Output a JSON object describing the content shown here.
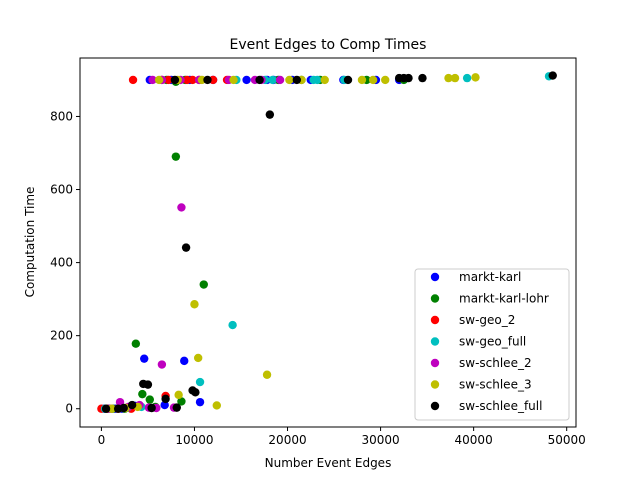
{
  "chart_data": {
    "type": "scatter",
    "title": "Event Edges to Comp Times",
    "xlabel": "Number Event Edges",
    "ylabel": "Computation Time",
    "xlim": [
      -2300,
      51000
    ],
    "ylim": [
      -50,
      960
    ],
    "xticks": [
      0,
      10000,
      20000,
      30000,
      40000,
      50000
    ],
    "yticks": [
      0,
      200,
      400,
      600,
      800
    ],
    "grid": false,
    "legend_position": "lower-right",
    "series": [
      {
        "name": "markt-karl",
        "color": "#0000ff",
        "points": [
          [
            300,
            0
          ],
          [
            800,
            0
          ],
          [
            1500,
            0
          ],
          [
            2200,
            0
          ],
          [
            3000,
            5
          ],
          [
            3600,
            8
          ],
          [
            4600,
            137
          ],
          [
            6800,
            10
          ],
          [
            8900,
            131
          ],
          [
            10600,
            18
          ],
          [
            5200,
            900
          ],
          [
            7500,
            900
          ],
          [
            9500,
            900
          ],
          [
            12000,
            900
          ],
          [
            15600,
            900
          ],
          [
            17800,
            900
          ],
          [
            18500,
            900
          ],
          [
            20500,
            900
          ],
          [
            22500,
            900
          ],
          [
            26000,
            900
          ],
          [
            29500,
            900
          ],
          [
            32000,
            900
          ]
        ]
      },
      {
        "name": "markt-karl-lohr",
        "color": "#008000",
        "points": [
          [
            500,
            0
          ],
          [
            1200,
            0
          ],
          [
            2500,
            0
          ],
          [
            3700,
            178
          ],
          [
            4400,
            40
          ],
          [
            5200,
            25
          ],
          [
            5800,
            5
          ],
          [
            8000,
            690
          ],
          [
            8600,
            20
          ],
          [
            11000,
            340
          ],
          [
            7000,
            900
          ],
          [
            8000,
            895
          ],
          [
            9000,
            900
          ],
          [
            19000,
            900
          ],
          [
            21500,
            900
          ],
          [
            23500,
            900
          ],
          [
            28500,
            900
          ],
          [
            32500,
            900
          ]
        ]
      },
      {
        "name": "sw-geo_2",
        "color": "#ff0000",
        "points": [
          [
            0,
            0
          ],
          [
            600,
            0
          ],
          [
            1800,
            0
          ],
          [
            3200,
            0
          ],
          [
            6900,
            35
          ],
          [
            3400,
            900
          ],
          [
            6500,
            900
          ],
          [
            7200,
            900
          ],
          [
            9200,
            900
          ],
          [
            9800,
            900
          ],
          [
            10500,
            900
          ],
          [
            12000,
            900
          ],
          [
            13500,
            900
          ]
        ]
      },
      {
        "name": "sw-geo_full",
        "color": "#00bfbf",
        "points": [
          [
            400,
            0
          ],
          [
            2800,
            3
          ],
          [
            4300,
            5
          ],
          [
            10600,
            73
          ],
          [
            14100,
            229
          ],
          [
            14500,
            900
          ],
          [
            17600,
            900
          ],
          [
            18400,
            900
          ],
          [
            22800,
            900
          ],
          [
            23200,
            900
          ],
          [
            26100,
            900
          ],
          [
            39300,
            905
          ],
          [
            48100,
            910
          ]
        ]
      },
      {
        "name": "sw-schlee_2",
        "color": "#bf00bf",
        "points": [
          [
            1000,
            0
          ],
          [
            2000,
            18
          ],
          [
            2900,
            5
          ],
          [
            4100,
            10
          ],
          [
            5100,
            3
          ],
          [
            5900,
            2
          ],
          [
            6500,
            121
          ],
          [
            7800,
            3
          ],
          [
            8600,
            551
          ],
          [
            5500,
            900
          ],
          [
            6500,
            900
          ],
          [
            8500,
            900
          ],
          [
            10500,
            900
          ],
          [
            13700,
            900
          ],
          [
            16500,
            900
          ],
          [
            17200,
            900
          ],
          [
            19200,
            900
          ]
        ]
      },
      {
        "name": "sw-schlee_3",
        "color": "#bfbf00",
        "points": [
          [
            1100,
            0
          ],
          [
            2600,
            2
          ],
          [
            3900,
            5
          ],
          [
            8300,
            38
          ],
          [
            10000,
            286
          ],
          [
            10400,
            139
          ],
          [
            12400,
            9
          ],
          [
            17800,
            93
          ],
          [
            6200,
            900
          ],
          [
            8200,
            900
          ],
          [
            10800,
            900
          ],
          [
            14200,
            900
          ],
          [
            20200,
            900
          ],
          [
            21500,
            900
          ],
          [
            24000,
            900
          ],
          [
            28000,
            900
          ],
          [
            29200,
            900
          ],
          [
            30500,
            900
          ],
          [
            37300,
            905
          ],
          [
            38000,
            905
          ],
          [
            40200,
            907
          ]
        ]
      },
      {
        "name": "sw-schlee_full",
        "color": "#000000",
        "points": [
          [
            500,
            0
          ],
          [
            1800,
            0
          ],
          [
            2400,
            2
          ],
          [
            3300,
            10
          ],
          [
            4500,
            68
          ],
          [
            5000,
            66
          ],
          [
            5400,
            2
          ],
          [
            6900,
            27
          ],
          [
            8100,
            3
          ],
          [
            9100,
            441
          ],
          [
            9800,
            50
          ],
          [
            10100,
            45
          ],
          [
            18100,
            805
          ],
          [
            7900,
            900
          ],
          [
            11400,
            900
          ],
          [
            17000,
            900
          ],
          [
            21000,
            900
          ],
          [
            26500,
            900
          ],
          [
            32000,
            905
          ],
          [
            32500,
            905
          ],
          [
            33000,
            905
          ],
          [
            34500,
            905
          ],
          [
            48500,
            912
          ]
        ]
      }
    ]
  }
}
